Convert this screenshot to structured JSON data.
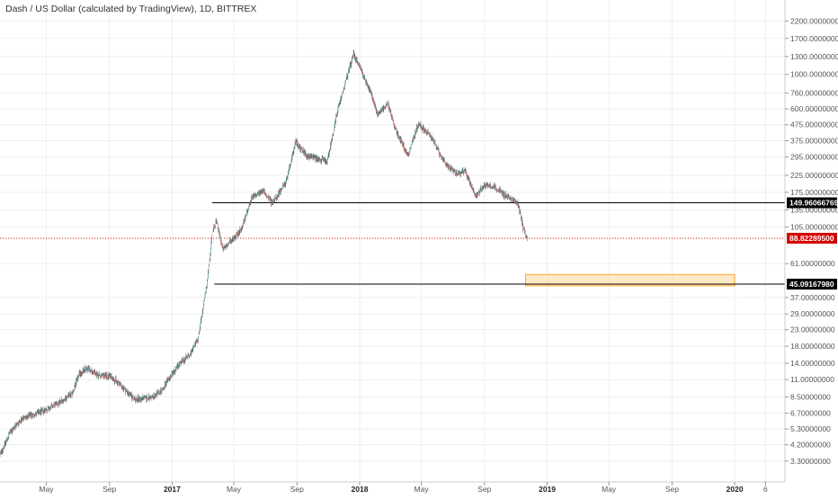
{
  "header": {
    "title": "Dash / US Dollar (calculated by TradingView), 1D, BITTREX"
  },
  "chart_data": {
    "type": "candlestick",
    "y_scale": "log",
    "ylim": [
      3.0,
      2300.0
    ],
    "y_ticks": [
      "3.30000000",
      "4.20000000",
      "5.30000000",
      "6.70000000",
      "8.50000000",
      "11.00000000",
      "14.00000000",
      "18.00000000",
      "23.00000000",
      "29.00000000",
      "37.00000000",
      "61.00000000",
      "105.00000000",
      "135.00000000",
      "175.00000000",
      "225.00000000",
      "295.00000000",
      "375.00000000",
      "475.00000000",
      "600.00000000",
      "760.00000000",
      "1000.00000000",
      "1300.00000000",
      "1700.00000000",
      "2200.00000000"
    ],
    "x_ticks": [
      "May",
      "Sep",
      "2017",
      "May",
      "Sep",
      "2018",
      "May",
      "Sep",
      "2019",
      "May",
      "Sep",
      "2020",
      "6"
    ],
    "x_tick_dates": [
      "2016-05-01",
      "2016-09-01",
      "2017-01-01",
      "2017-05-01",
      "2017-09-01",
      "2018-01-01",
      "2018-05-01",
      "2018-09-01",
      "2019-01-01",
      "2019-05-01",
      "2019-09-01",
      "2020-01-01",
      "2020-03-01"
    ],
    "price_path": [
      [
        "2016-02-01",
        3.6
      ],
      [
        "2016-02-20",
        5.0
      ],
      [
        "2016-03-15",
        6.2
      ],
      [
        "2016-04-15",
        6.7
      ],
      [
        "2016-05-20",
        7.6
      ],
      [
        "2016-06-20",
        8.9
      ],
      [
        "2016-07-05",
        12.0
      ],
      [
        "2016-07-20",
        13.0
      ],
      [
        "2016-08-10",
        11.8
      ],
      [
        "2016-09-05",
        11.5
      ],
      [
        "2016-10-01",
        9.5
      ],
      [
        "2016-10-20",
        8.2
      ],
      [
        "2016-11-25",
        8.5
      ],
      [
        "2016-12-15",
        9.6
      ],
      [
        "2017-01-01",
        12.0
      ],
      [
        "2017-01-15",
        13.8
      ],
      [
        "2017-02-05",
        16.0
      ],
      [
        "2017-02-20",
        20.0
      ],
      [
        "2017-03-10",
        45.0
      ],
      [
        "2017-03-20",
        95.0
      ],
      [
        "2017-03-28",
        115.0
      ],
      [
        "2017-04-10",
        75.0
      ],
      [
        "2017-04-25",
        85.0
      ],
      [
        "2017-05-15",
        100.0
      ],
      [
        "2017-06-05",
        160.0
      ],
      [
        "2017-06-25",
        180.0
      ],
      [
        "2017-07-15",
        150.0
      ],
      [
        "2017-08-10",
        200.0
      ],
      [
        "2017-08-30",
        370.0
      ],
      [
        "2017-09-20",
        300.0
      ],
      [
        "2017-10-10",
        290.0
      ],
      [
        "2017-10-30",
        275.0
      ],
      [
        "2017-11-20",
        600.0
      ],
      [
        "2017-12-20",
        1350.0
      ],
      [
        "2018-01-05",
        1050.0
      ],
      [
        "2018-01-20",
        800.0
      ],
      [
        "2018-02-05",
        560.0
      ],
      [
        "2018-02-25",
        640.0
      ],
      [
        "2018-03-15",
        420.0
      ],
      [
        "2018-04-05",
        300.0
      ],
      [
        "2018-04-25",
        480.0
      ],
      [
        "2018-05-20",
        400.0
      ],
      [
        "2018-06-15",
        270.0
      ],
      [
        "2018-07-10",
        230.0
      ],
      [
        "2018-07-25",
        240.0
      ],
      [
        "2018-08-15",
        165.0
      ],
      [
        "2018-09-01",
        195.0
      ],
      [
        "2018-09-20",
        190.0
      ],
      [
        "2018-10-20",
        160.0
      ],
      [
        "2018-11-05",
        150.0
      ],
      [
        "2018-11-15",
        105.0
      ],
      [
        "2018-11-23",
        88.8
      ]
    ],
    "annotations": {
      "lines": [
        {
          "price": 149.96066769,
          "label": "149.96066769",
          "from": "2017-03-20",
          "to": "2020-07-01",
          "color": "#000000"
        },
        {
          "price": 45.0916798,
          "label": "45.09167980",
          "from": "2017-03-24",
          "to": "2020-07-01",
          "color": "#000000"
        }
      ],
      "last_price": {
        "price": 88.822895,
        "label": "88.82289500",
        "color": "#d50000"
      },
      "zone": {
        "from": "2018-11-20",
        "to": "2020-01-01",
        "price_top": 52.0,
        "price_bottom": 44.0,
        "fill": "#ffe0b2",
        "stroke": "#ffa726"
      }
    },
    "colors": {
      "up": "#26a69a",
      "down": "#ef5350",
      "wick": "#555555",
      "grid": "#eeeeee",
      "axis_text": "#555555"
    }
  }
}
